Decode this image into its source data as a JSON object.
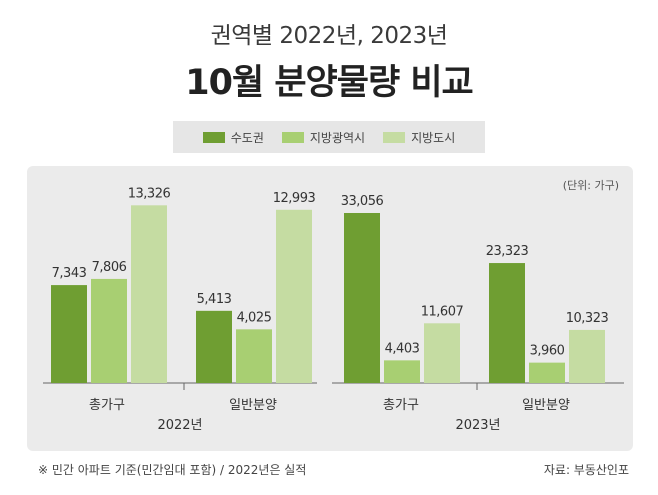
{
  "header": {
    "subtitle": "권역별 2022년, 2023년",
    "title": "10월 분양물량 비교"
  },
  "legend": [
    {
      "label": "수도권",
      "color": "#6f9e32"
    },
    {
      "label": "지방광역시",
      "color": "#a8cf72"
    },
    {
      "label": "지방도시",
      "color": "#c5dca2"
    }
  ],
  "footer": {
    "note": "※ 민간 아파트 기준(민간임대 포함) / 2022년은 실적",
    "source": "자료: 부동산인포"
  },
  "chart_data": {
    "type": "bar",
    "unit_label": "(단위: 가구)",
    "groups": [
      {
        "year": "2022년",
        "categories": [
          "총가구",
          "일반분양"
        ]
      },
      {
        "year": "2023년",
        "categories": [
          "총가구",
          "일반분양"
        ]
      }
    ],
    "series": [
      {
        "name": "수도권",
        "color": "#6f9e32",
        "values": [
          7343,
          5413,
          33056,
          23323
        ]
      },
      {
        "name": "지방광역시",
        "color": "#a8cf72",
        "values": [
          7806,
          4025,
          4403,
          3960
        ]
      },
      {
        "name": "지방도시",
        "color": "#c5dca2",
        "values": [
          13326,
          12993,
          11607,
          10323
        ]
      }
    ],
    "segments": [
      {
        "range": [
          0,
          13500
        ],
        "value_labels": [
          [
            "7,343",
            "5,413"
          ],
          [
            "7,806",
            "4,025"
          ],
          [
            "13,326",
            "12,993"
          ]
        ]
      },
      {
        "range": [
          0,
          35000
        ],
        "value_labels": [
          [
            "33,056",
            "23,323"
          ],
          [
            "4,403",
            "3,960"
          ],
          [
            "11,607",
            "10,323"
          ]
        ]
      }
    ]
  }
}
